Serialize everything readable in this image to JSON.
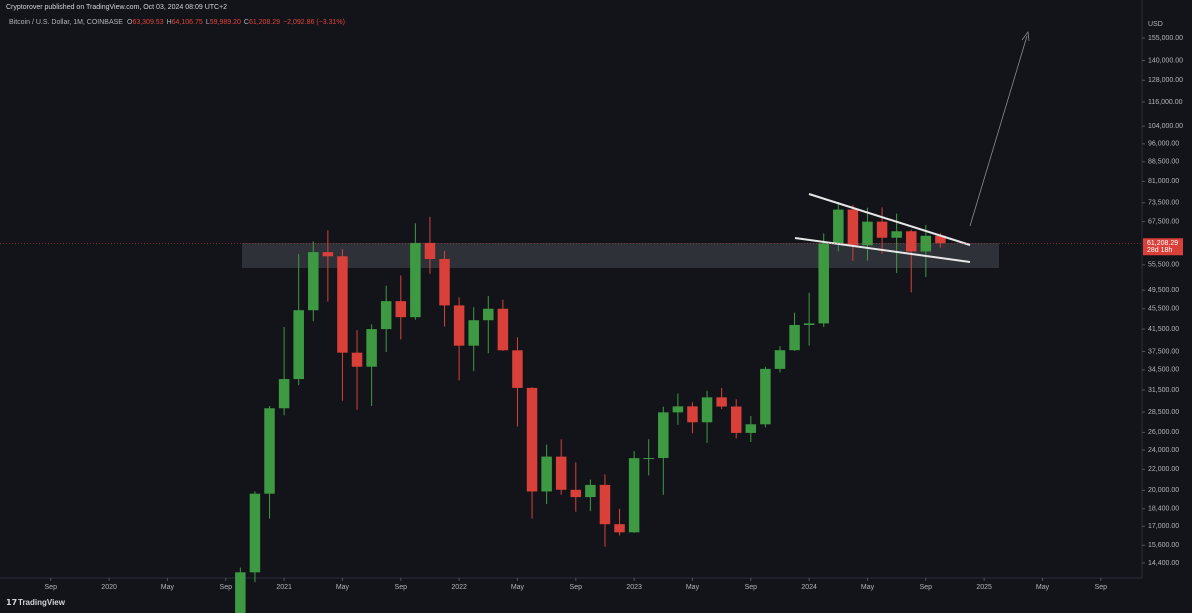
{
  "header": {
    "published": "Cryptorover published on TradingView.com, Oct 03, 2024 08:09 UTC+2",
    "brand": "TradingView"
  },
  "chart_data": {
    "type": "candlestick",
    "symbol": "Bitcoin / U.S. Dollar, 1M, COINBASE",
    "ohlc_legend": [
      {
        "label": "O",
        "value": "63,309.53"
      },
      {
        "label": "H",
        "value": "64,106.75"
      },
      {
        "label": "L",
        "value": "59,989.20"
      },
      {
        "label": "C",
        "value": "61,208.29"
      }
    ],
    "change": "−2,092.86 (−3.31%)",
    "currency": "USD",
    "up_color": "#3e9a42",
    "down_color": "#d9403a",
    "log_scale": true,
    "x": [
      "2020-10",
      "2020-11",
      "2020-12",
      "2021-01",
      "2021-02",
      "2021-03",
      "2021-04",
      "2021-05",
      "2021-06",
      "2021-07",
      "2021-08",
      "2021-09",
      "2021-10",
      "2021-11",
      "2021-12",
      "2022-01",
      "2022-02",
      "2022-03",
      "2022-04",
      "2022-05",
      "2022-06",
      "2022-07",
      "2022-08",
      "2022-09",
      "2022-10",
      "2022-11",
      "2022-12",
      "2023-01",
      "2023-02",
      "2023-03",
      "2023-04",
      "2023-05",
      "2023-06",
      "2023-07",
      "2023-08",
      "2023-09",
      "2023-10",
      "2023-11",
      "2023-12",
      "2024-01",
      "2024-02",
      "2024-03",
      "2024-04",
      "2024-05",
      "2024-06",
      "2024-07",
      "2024-08",
      "2024-09",
      "2024-10"
    ],
    "open": [
      10780,
      13800,
      19700,
      29000,
      33100,
      45200,
      58800,
      57700,
      37300,
      35000,
      41500,
      47100,
      43800,
      61300,
      57000,
      46200,
      38500,
      43200,
      45500,
      37700,
      31800,
      19900,
      23300,
      20050,
      19400,
      20500,
      17160,
      16540,
      23140,
      23150,
      28470,
      29250,
      27220,
      30470,
      29230,
      25940,
      26970,
      34660,
      37720,
      42280,
      42580,
      61130,
      71290,
      60650,
      67490,
      62760,
      64620,
      58970,
      63309.53
    ],
    "high": [
      14100,
      19900,
      29300,
      41900,
      58300,
      61700,
      64900,
      59600,
      41300,
      42400,
      50500,
      52900,
      67000,
      69000,
      59100,
      47900,
      45800,
      48200,
      47400,
      40000,
      31900,
      24600,
      25200,
      22700,
      21000,
      21500,
      18400,
      23900,
      25200,
      29200,
      31000,
      29800,
      31400,
      31800,
      30200,
      28000,
      35000,
      38400,
      44700,
      48900,
      64000,
      73800,
      72800,
      71900,
      72000,
      70000,
      65100,
      66500,
      64106.75
    ],
    "low": [
      10400,
      13200,
      17600,
      28100,
      32200,
      43000,
      47000,
      30000,
      28800,
      29300,
      37400,
      39600,
      43300,
      53300,
      42000,
      32900,
      34300,
      37200,
      37600,
      26700,
      17600,
      18800,
      19600,
      18150,
      18200,
      15500,
      16300,
      16500,
      21400,
      19600,
      26900,
      25900,
      24800,
      28900,
      25300,
      24900,
      26600,
      34100,
      37600,
      38500,
      41900,
      59000,
      56500,
      56600,
      58400,
      53500,
      49000,
      52500,
      59989.2
    ],
    "close": [
      13800,
      19700,
      29000,
      33100,
      45200,
      58800,
      57700,
      37300,
      35000,
      41500,
      47100,
      43800,
      61300,
      57000,
      46200,
      38500,
      43200,
      45500,
      37700,
      31800,
      19900,
      23300,
      20050,
      19400,
      20500,
      17160,
      16540,
      23140,
      23150,
      28470,
      29250,
      27220,
      30470,
      29230,
      25940,
      26970,
      34660,
      37720,
      42280,
      42580,
      61130,
      71290,
      60650,
      67490,
      62760,
      64620,
      58970,
      63310,
      61208.29
    ],
    "xlim": [
      "2019-06",
      "2025-11"
    ],
    "xticks": [
      {
        "value": "2019-09",
        "label": "Sep"
      },
      {
        "value": "2020-01",
        "label": "2020"
      },
      {
        "value": "2020-05",
        "label": "May"
      },
      {
        "value": "2020-09",
        "label": "Sep"
      },
      {
        "value": "2021-01",
        "label": "2021"
      },
      {
        "value": "2021-05",
        "label": "May"
      },
      {
        "value": "2021-09",
        "label": "Sep"
      },
      {
        "value": "2022-01",
        "label": "2022"
      },
      {
        "value": "2022-05",
        "label": "May"
      },
      {
        "value": "2022-09",
        "label": "Sep"
      },
      {
        "value": "2023-01",
        "label": "2023"
      },
      {
        "value": "2023-05",
        "label": "May"
      },
      {
        "value": "2023-09",
        "label": "Sep"
      },
      {
        "value": "2024-01",
        "label": "2024"
      },
      {
        "value": "2024-05",
        "label": "May"
      },
      {
        "value": "2024-09",
        "label": "Sep"
      },
      {
        "value": "2025-01",
        "label": "2025"
      },
      {
        "value": "2025-05",
        "label": "May"
      },
      {
        "value": "2025-09",
        "label": "Sep"
      }
    ],
    "ylim": [
      13450,
      172000
    ],
    "yticks": [
      {
        "value": 155000,
        "label": "155,000.00"
      },
      {
        "value": 140000,
        "label": "140,000.00"
      },
      {
        "value": 128000,
        "label": "128,000.00"
      },
      {
        "value": 116000,
        "label": "116,000.00"
      },
      {
        "value": 104000,
        "label": "104,000.00"
      },
      {
        "value": 96000,
        "label": "96,000.00"
      },
      {
        "value": 88500,
        "label": "88,500.00"
      },
      {
        "value": 81000,
        "label": "81,000.00"
      },
      {
        "value": 73500,
        "label": "73,500.00"
      },
      {
        "value": 67500,
        "label": "67,500.00"
      },
      {
        "value": 55500,
        "label": "55,500.00"
      },
      {
        "value": 49500,
        "label": "49,500.00"
      },
      {
        "value": 45500,
        "label": "45,500.00"
      },
      {
        "value": 41500,
        "label": "41,500.00"
      },
      {
        "value": 37500,
        "label": "37,500.00"
      },
      {
        "value": 34500,
        "label": "34,500.00"
      },
      {
        "value": 31500,
        "label": "31,500.00"
      },
      {
        "value": 28500,
        "label": "28,500.00"
      },
      {
        "value": 26000,
        "label": "26,000.00"
      },
      {
        "value": 24000,
        "label": "24,000.00"
      },
      {
        "value": 22000,
        "label": "22,000.00"
      },
      {
        "value": 20000,
        "label": "20,000.00"
      },
      {
        "value": 18400,
        "label": "18,400.00"
      },
      {
        "value": 17000,
        "label": "17,000.00"
      },
      {
        "value": 15600,
        "label": "15,600.00"
      },
      {
        "value": 14400,
        "label": "14,400.00"
      }
    ],
    "last_price": {
      "value": 61208.29,
      "label": "61,208.29"
    },
    "countdown": "28d 18h"
  }
}
